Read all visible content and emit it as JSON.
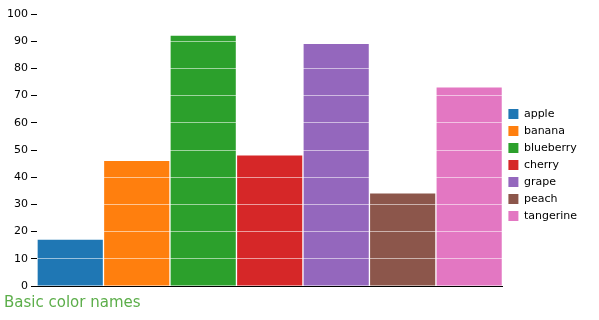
{
  "chart_data": {
    "type": "bar",
    "title": "Basic color names",
    "categories": [
      "apple",
      "banana",
      "blueberry",
      "cherry",
      "grape",
      "peach",
      "tangerine"
    ],
    "values": [
      17,
      46,
      92,
      48,
      89,
      34,
      73
    ],
    "colors": [
      "#1f77b4",
      "#ff7f0e",
      "#2ca02c",
      "#d62728",
      "#9467bd",
      "#8c564b",
      "#e377c2"
    ],
    "ylim": [
      0,
      100
    ],
    "yticks": [
      0,
      10,
      20,
      30,
      40,
      50,
      60,
      70,
      80,
      90,
      100
    ],
    "grid": true,
    "legend": "right",
    "tick_labels": "y"
  }
}
